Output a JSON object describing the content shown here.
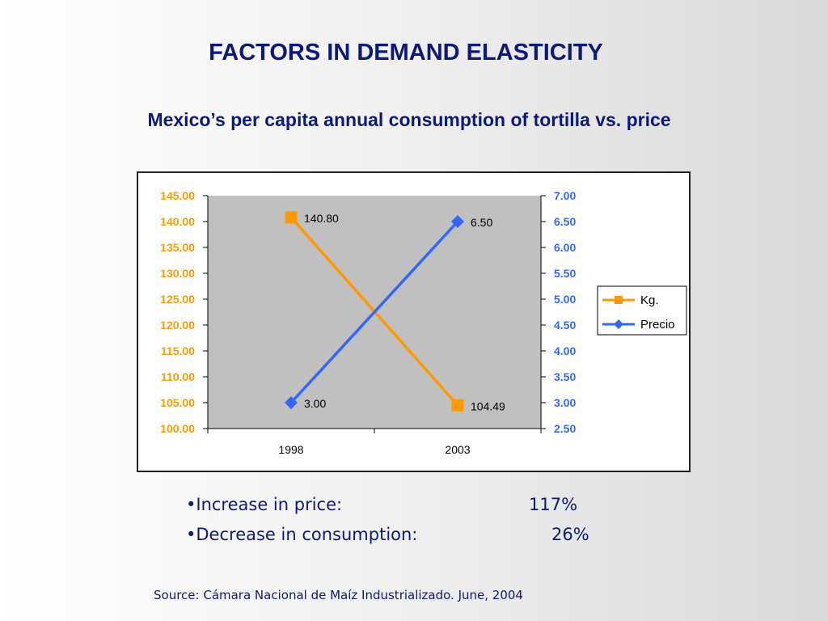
{
  "slide": {
    "title": "FACTORS IN DEMAND ELASTICITY",
    "subtitle": "Mexico’s per capita annual consumption of tortilla vs. price"
  },
  "bullets": [
    {
      "label": "•Increase in price:",
      "value": "117%"
    },
    {
      "label": "•Decrease in consumption:",
      "value": "26%"
    }
  ],
  "source": "Source: Cámara Nacional de Maíz Industrializado. June, 2004",
  "chart_data": {
    "type": "line",
    "categories": [
      "1998",
      "2003"
    ],
    "series": [
      {
        "name": "Kg.",
        "axis": "left",
        "values": [
          140.8,
          104.49
        ],
        "labels": [
          "140.80",
          "104.49"
        ],
        "color": "#ff9900",
        "marker": "square"
      },
      {
        "name": "Precio",
        "axis": "right",
        "values": [
          3.0,
          6.5
        ],
        "labels": [
          "3.00",
          "6.50"
        ],
        "color": "#3366ff",
        "marker": "diamond"
      }
    ],
    "y_left": {
      "min": 100,
      "max": 145,
      "step": 5,
      "color": "#ff9900",
      "ticks": [
        "100.00",
        "105.00",
        "110.00",
        "115.00",
        "120.00",
        "125.00",
        "130.00",
        "135.00",
        "140.00",
        "145.00"
      ]
    },
    "y_right": {
      "min": 2.5,
      "max": 7.0,
      "step": 0.5,
      "color": "#3366ff",
      "ticks": [
        "2.50",
        "3.00",
        "3.50",
        "4.00",
        "4.50",
        "5.00",
        "5.50",
        "6.00",
        "6.50",
        "7.00"
      ]
    },
    "plot_background": "#c0c0c0",
    "grid": false,
    "legend_position": "right"
  }
}
